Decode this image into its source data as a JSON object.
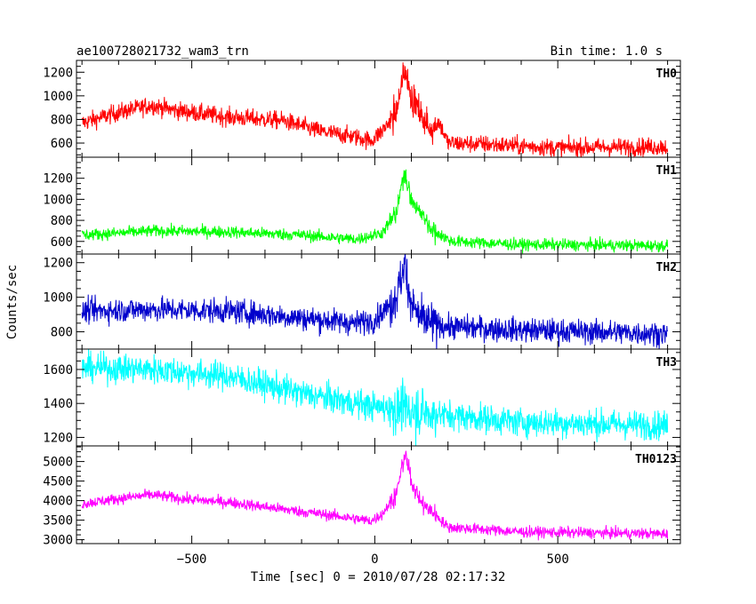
{
  "header": {
    "title": "ae100728021732_wam3_trn",
    "bin_time": "Bin time: 1.0 s"
  },
  "chart_data": {
    "type": "line",
    "xlabel": "Time [sec] 0 = 2010/07/28 02:17:32",
    "ylabel": "Counts/sec",
    "xlim": [
      -815,
      835
    ],
    "x_ticks": [
      -500,
      0,
      500
    ],
    "x_tick_labels": [
      "−500",
      "0",
      "500"
    ],
    "grid": false,
    "panels": [
      {
        "name": "TH0",
        "color": "#ff0000",
        "ylim": [
          480,
          1300
        ],
        "y_ticks": [
          600,
          800,
          1000,
          1200
        ],
        "y_tick_labels": [
          "600",
          "800",
          "1000",
          "1200"
        ],
        "keypoints": [
          [
            -800,
            770
          ],
          [
            -700,
            860
          ],
          [
            -610,
            920
          ],
          [
            -550,
            880
          ],
          [
            -400,
            820
          ],
          [
            -250,
            790
          ],
          [
            -150,
            700
          ],
          [
            -50,
            650
          ],
          [
            -10,
            620
          ],
          [
            20,
            700
          ],
          [
            60,
            860
          ],
          [
            82,
            1230
          ],
          [
            100,
            1000
          ],
          [
            125,
            850
          ],
          [
            150,
            720
          ],
          [
            175,
            780
          ],
          [
            200,
            600
          ],
          [
            300,
            590
          ],
          [
            500,
            560
          ],
          [
            800,
            570
          ]
        ],
        "noise": 38
      },
      {
        "name": "TH1",
        "color": "#00ff00",
        "ylim": [
          480,
          1400
        ],
        "y_ticks": [
          600,
          800,
          1000,
          1200
        ],
        "y_tick_labels": [
          "600",
          "800",
          "1000",
          "1200"
        ],
        "keypoints": [
          [
            -800,
            660
          ],
          [
            -600,
            700
          ],
          [
            -400,
            690
          ],
          [
            -200,
            660
          ],
          [
            -50,
            620
          ],
          [
            20,
            680
          ],
          [
            60,
            880
          ],
          [
            82,
            1280
          ],
          [
            100,
            980
          ],
          [
            130,
            850
          ],
          [
            160,
            700
          ],
          [
            190,
            640
          ],
          [
            210,
            600
          ],
          [
            400,
            570
          ],
          [
            800,
            560
          ]
        ],
        "noise": 28
      },
      {
        "name": "TH2",
        "color": "#0000cc",
        "ylim": [
          700,
          1250
        ],
        "y_ticks": [
          800,
          1000,
          1200
        ],
        "y_tick_labels": [
          "800",
          "1000",
          "1200"
        ],
        "keypoints": [
          [
            -800,
            920
          ],
          [
            -600,
            930
          ],
          [
            -400,
            920
          ],
          [
            -200,
            880
          ],
          [
            -50,
            850
          ],
          [
            0,
            870
          ],
          [
            40,
            950
          ],
          [
            60,
            1020
          ],
          [
            82,
            1180
          ],
          [
            100,
            960
          ],
          [
            130,
            860
          ],
          [
            200,
            830
          ],
          [
            400,
            810
          ],
          [
            600,
            800
          ],
          [
            800,
            790
          ]
        ],
        "noise": 35
      },
      {
        "name": "TH3",
        "color": "#00ffff",
        "ylim": [
          1150,
          1720
        ],
        "y_ticks": [
          1200,
          1400,
          1600
        ],
        "y_tick_labels": [
          "1200",
          "1400",
          "1600"
        ],
        "keypoints": [
          [
            -800,
            1610
          ],
          [
            -600,
            1600
          ],
          [
            -400,
            1560
          ],
          [
            -200,
            1460
          ],
          [
            0,
            1380
          ],
          [
            100,
            1360
          ],
          [
            200,
            1330
          ],
          [
            400,
            1290
          ],
          [
            600,
            1280
          ],
          [
            800,
            1270
          ]
        ],
        "noise": 42
      },
      {
        "name": "TH0123",
        "color": "#ff00ff",
        "ylim": [
          2900,
          5400
        ],
        "y_ticks": [
          3000,
          3500,
          4000,
          4500,
          5000
        ],
        "y_tick_labels": [
          "3000",
          "3500",
          "4000",
          "4500",
          "5000"
        ],
        "keypoints": [
          [
            -800,
            3920
          ],
          [
            -700,
            4050
          ],
          [
            -610,
            4150
          ],
          [
            -500,
            4020
          ],
          [
            -400,
            3960
          ],
          [
            -250,
            3780
          ],
          [
            -100,
            3600
          ],
          [
            -10,
            3480
          ],
          [
            20,
            3650
          ],
          [
            60,
            4200
          ],
          [
            82,
            5200
          ],
          [
            100,
            4500
          ],
          [
            130,
            3900
          ],
          [
            160,
            3700
          ],
          [
            200,
            3320
          ],
          [
            400,
            3200
          ],
          [
            800,
            3150
          ]
        ],
        "noise": 70
      }
    ]
  }
}
